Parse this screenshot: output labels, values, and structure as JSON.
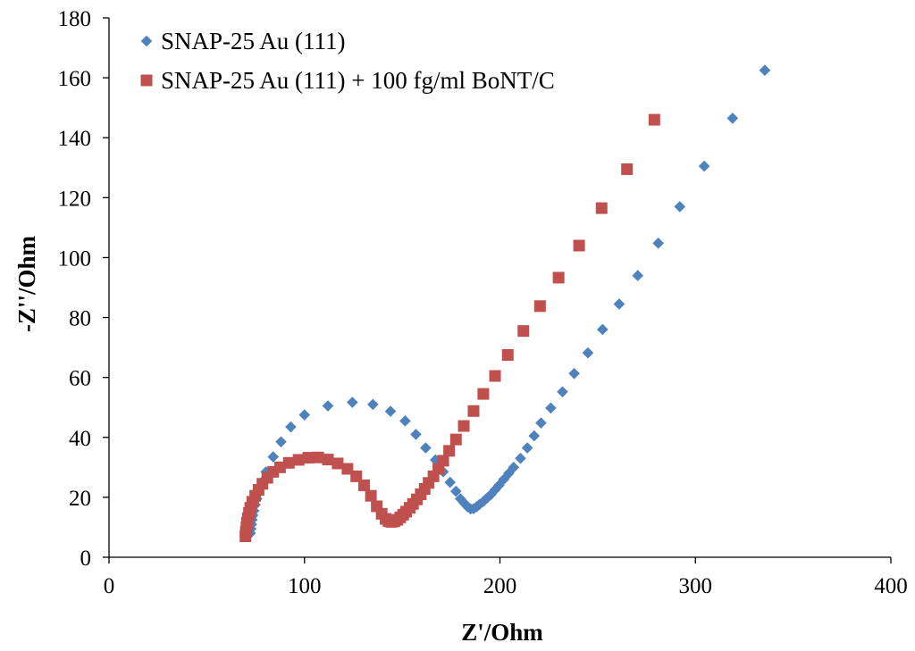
{
  "chart_data": {
    "type": "scatter",
    "title": "",
    "xlabel": "Z'/Ohm",
    "ylabel": "-Z''/Ohm",
    "xlim": [
      0,
      400
    ],
    "ylim": [
      0,
      180
    ],
    "xticks": [
      0,
      100,
      200,
      300,
      400
    ],
    "yticks": [
      0,
      20,
      40,
      60,
      80,
      100,
      120,
      140,
      160,
      180
    ],
    "grid": false,
    "legend_position": "top-left",
    "series": [
      {
        "name": "SNAP-25 Au (111)",
        "marker": "diamond",
        "color": "#4f81bd",
        "points": [
          [
            72.3,
            8
          ],
          [
            72.6,
            9.5
          ],
          [
            72.9,
            11
          ],
          [
            73.2,
            12.5
          ],
          [
            73.6,
            14
          ],
          [
            74.1,
            15.5
          ],
          [
            74.8,
            17.5
          ],
          [
            75.6,
            19.5
          ],
          [
            76.8,
            22
          ],
          [
            78.2,
            25
          ],
          [
            80.3,
            28.5
          ],
          [
            84,
            33.5
          ],
          [
            88,
            38.5
          ],
          [
            93,
            43.5
          ],
          [
            100,
            47.5
          ],
          [
            112,
            50.5
          ],
          [
            124.5,
            51.7
          ],
          [
            135,
            51
          ],
          [
            144,
            48.7
          ],
          [
            151.5,
            45.5
          ],
          [
            157,
            41
          ],
          [
            162,
            36.5
          ],
          [
            167,
            32.5
          ],
          [
            171,
            28.5
          ],
          [
            174.5,
            25
          ],
          [
            177.5,
            22
          ],
          [
            179.8,
            19.5
          ],
          [
            181.8,
            18
          ],
          [
            183.5,
            16.8
          ],
          [
            185,
            16.1
          ],
          [
            186.5,
            16.2
          ],
          [
            188,
            16.8
          ],
          [
            189.5,
            17.6
          ],
          [
            191.5,
            18.6
          ],
          [
            193.5,
            19.8
          ],
          [
            195.5,
            21
          ],
          [
            197.5,
            22.5
          ],
          [
            199.5,
            24
          ],
          [
            202,
            26
          ],
          [
            204.5,
            28
          ],
          [
            207,
            30
          ],
          [
            210.5,
            33
          ],
          [
            214,
            36.5
          ],
          [
            217.5,
            40.5
          ],
          [
            221,
            44.8
          ],
          [
            226,
            49.8
          ],
          [
            232,
            55.2
          ],
          [
            238,
            61.3
          ],
          [
            245,
            68.2
          ],
          [
            252.5,
            76
          ],
          [
            261,
            84.5
          ],
          [
            270.5,
            94
          ],
          [
            281,
            104.8
          ],
          [
            292,
            117
          ],
          [
            304.5,
            130.5
          ],
          [
            319,
            146.5
          ],
          [
            335.5,
            162.5
          ]
        ]
      },
      {
        "name": "SNAP-25 Au (111) + 100 fg/ml BoNT/C",
        "marker": "square",
        "color": "#c0504d",
        "points": [
          [
            69.8,
            7
          ],
          [
            70,
            8.5
          ],
          [
            70.3,
            10
          ],
          [
            70.6,
            11.5
          ],
          [
            71,
            13
          ],
          [
            71.6,
            14.8
          ],
          [
            72.3,
            16.5
          ],
          [
            73.3,
            18.5
          ],
          [
            74.8,
            20.5
          ],
          [
            76.5,
            22.5
          ],
          [
            78.5,
            24.5
          ],
          [
            81,
            26.5
          ],
          [
            84,
            28.5
          ],
          [
            87.5,
            30
          ],
          [
            92,
            31.5
          ],
          [
            97,
            32.5
          ],
          [
            102,
            33.2
          ],
          [
            107,
            33.3
          ],
          [
            112,
            32.6
          ],
          [
            117,
            31.3
          ],
          [
            122,
            29.5
          ],
          [
            126.5,
            27
          ],
          [
            130.5,
            24
          ],
          [
            134,
            20.5
          ],
          [
            137,
            17
          ],
          [
            139.5,
            14.5
          ],
          [
            141.5,
            12.8
          ],
          [
            143,
            12
          ],
          [
            144.5,
            11.8
          ],
          [
            146,
            12
          ],
          [
            147.5,
            12.5
          ],
          [
            149,
            13.3
          ],
          [
            150.5,
            14.2
          ],
          [
            152,
            15.2
          ],
          [
            153.8,
            16.5
          ],
          [
            155.5,
            17.8
          ],
          [
            157.5,
            19.3
          ],
          [
            159.5,
            21
          ],
          [
            161.5,
            22.8
          ],
          [
            163.5,
            24.8
          ],
          [
            166,
            27
          ],
          [
            168.5,
            29.5
          ],
          [
            171,
            32.2
          ],
          [
            174,
            35.5
          ],
          [
            177.5,
            39.3
          ],
          [
            181.5,
            43.8
          ],
          [
            186.5,
            48.8
          ],
          [
            191.5,
            54.5
          ],
          [
            197.5,
            60.5
          ],
          [
            204,
            67.5
          ],
          [
            212,
            75.5
          ],
          [
            220.5,
            83.8
          ],
          [
            230,
            93.3
          ],
          [
            240.5,
            104
          ],
          [
            252,
            116.5
          ],
          [
            265,
            129.5
          ],
          [
            279,
            146
          ]
        ]
      }
    ]
  }
}
